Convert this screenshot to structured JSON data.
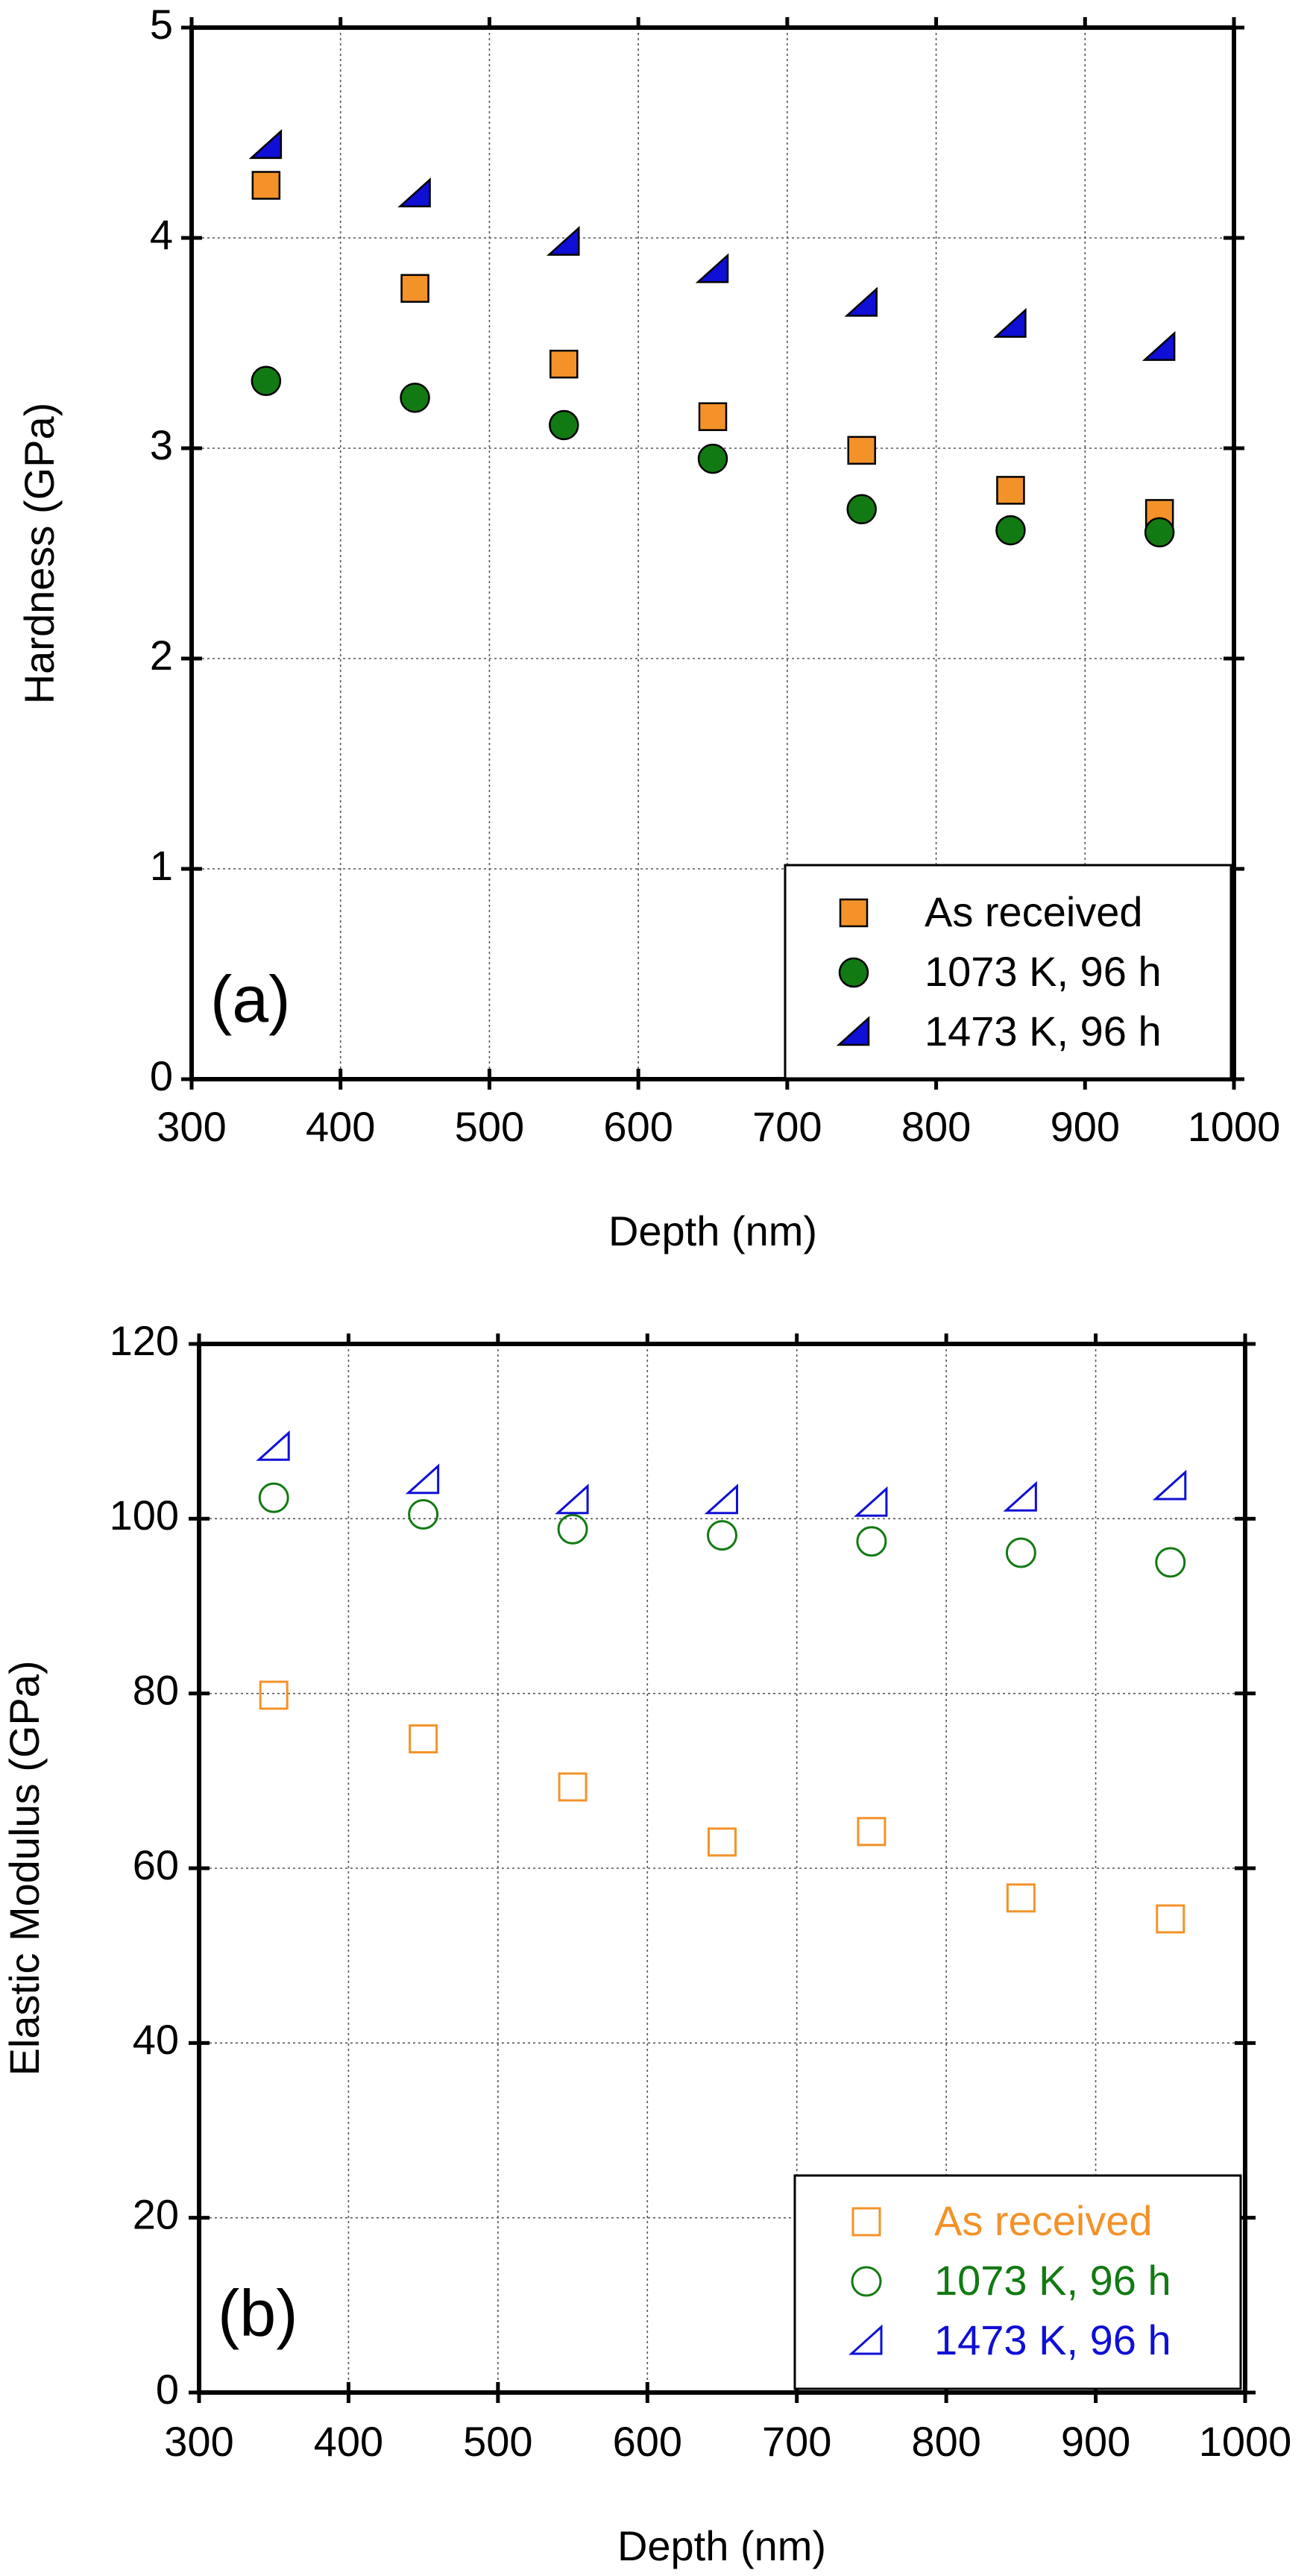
{
  "chart_data": [
    {
      "type": "scatter",
      "panel_label": "(a)",
      "xlabel": "Depth (nm)",
      "ylabel": "Hardness (GPa)",
      "xlim": [
        300,
        1000
      ],
      "ylim": [
        0,
        5
      ],
      "xticks": [
        "300",
        "400",
        "500",
        "600",
        "700",
        "800",
        "900",
        "1000"
      ],
      "yticks": [
        "0",
        "1",
        "2",
        "3",
        "4",
        "5"
      ],
      "grid": true,
      "legend_position": "bottom-right",
      "x": [
        350,
        450,
        550,
        650,
        750,
        850,
        950
      ],
      "series": [
        {
          "name": "As received",
          "marker": "square",
          "filled": true,
          "color": "#f39229",
          "values": [
            4.25,
            3.76,
            3.4,
            3.15,
            2.99,
            2.8,
            2.69
          ]
        },
        {
          "name": "1073 K, 96 h",
          "marker": "circle",
          "filled": true,
          "color": "#127a12",
          "values": [
            3.32,
            3.24,
            3.11,
            2.95,
            2.71,
            2.61,
            2.6
          ]
        },
        {
          "name": "1473 K, 96 h",
          "marker": "triangle",
          "filled": true,
          "color": "#0f0fd6",
          "values": [
            4.44,
            4.21,
            3.98,
            3.85,
            3.69,
            3.59,
            3.48
          ]
        }
      ]
    },
    {
      "type": "scatter",
      "panel_label": "(b)",
      "xlabel": "Depth (nm)",
      "ylabel": "Elastic Modulus (GPa)",
      "xlim": [
        300,
        1000
      ],
      "ylim": [
        0,
        120
      ],
      "xticks": [
        "300",
        "400",
        "500",
        "600",
        "700",
        "800",
        "900",
        "1000"
      ],
      "yticks": [
        "0",
        "20",
        "40",
        "60",
        "80",
        "100",
        "120"
      ],
      "grid": true,
      "legend_position": "bottom-right",
      "x": [
        350,
        450,
        550,
        650,
        750,
        850,
        950
      ],
      "series": [
        {
          "name": "As received",
          "marker": "square",
          "filled": false,
          "color": "#f39229",
          "values": [
            79.8,
            74.8,
            69.3,
            63.0,
            64.2,
            56.6,
            54.2
          ]
        },
        {
          "name": "1073 K, 96 h",
          "marker": "circle",
          "filled": false,
          "color": "#127a12",
          "values": [
            102.4,
            100.5,
            98.8,
            98.1,
            97.4,
            96.1,
            95.0
          ]
        },
        {
          "name": "1473 K, 96 h",
          "marker": "triangle",
          "filled": false,
          "color": "#0f0fd6",
          "values": [
            108.2,
            104.4,
            102.1,
            102.1,
            101.8,
            102.4,
            103.7
          ]
        }
      ]
    }
  ]
}
